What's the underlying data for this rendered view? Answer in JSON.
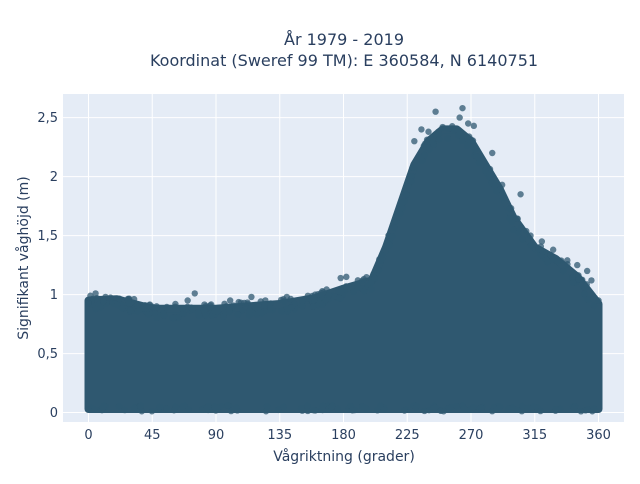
{
  "chart_data": {
    "type": "scatter",
    "title_lines": [
      "År 1979 - 2019",
      "Koordinat (Sweref 99 TM): E 360584, N 6140751"
    ],
    "xlabel": "Vågriktning (grader)",
    "ylabel": "Signifikant våghöjd (m)",
    "xlim": [
      -18,
      378
    ],
    "ylim": [
      -0.08,
      2.7
    ],
    "x_ticks": [
      0,
      45,
      90,
      135,
      180,
      225,
      270,
      315,
      360
    ],
    "x_tick_labels": [
      "0",
      "45",
      "90",
      "135",
      "180",
      "225",
      "270",
      "315",
      "360"
    ],
    "y_ticks": [
      0,
      0.5,
      1,
      1.5,
      2,
      2.5
    ],
    "y_tick_labels": [
      "0",
      "0,5",
      "1",
      "1,5",
      "2",
      "2,5"
    ],
    "grid": true,
    "colors": {
      "marker": "#2f5870",
      "plot_bg": "#e5ecf6",
      "grid": "#ffffff",
      "text": "#2a3f5f"
    },
    "upper_envelope": [
      {
        "x": 0,
        "y": 0.95
      },
      {
        "x": 20,
        "y": 0.96
      },
      {
        "x": 45,
        "y": 0.88
      },
      {
        "x": 90,
        "y": 0.88
      },
      {
        "x": 135,
        "y": 0.92
      },
      {
        "x": 160,
        "y": 0.97
      },
      {
        "x": 180,
        "y": 1.05
      },
      {
        "x": 200,
        "y": 1.12
      },
      {
        "x": 210,
        "y": 1.4
      },
      {
        "x": 220,
        "y": 1.75
      },
      {
        "x": 230,
        "y": 2.1
      },
      {
        "x": 240,
        "y": 2.3
      },
      {
        "x": 250,
        "y": 2.4
      },
      {
        "x": 260,
        "y": 2.4
      },
      {
        "x": 270,
        "y": 2.3
      },
      {
        "x": 280,
        "y": 2.1
      },
      {
        "x": 290,
        "y": 1.9
      },
      {
        "x": 300,
        "y": 1.65
      },
      {
        "x": 315,
        "y": 1.4
      },
      {
        "x": 330,
        "y": 1.3
      },
      {
        "x": 345,
        "y": 1.15
      },
      {
        "x": 360,
        "y": 0.92
      }
    ],
    "outliers": [
      {
        "x": 5,
        "y": 1.01
      },
      {
        "x": 12,
        "y": 0.98
      },
      {
        "x": 28,
        "y": 0.95
      },
      {
        "x": 40,
        "y": 0.91
      },
      {
        "x": 70,
        "y": 0.95
      },
      {
        "x": 75,
        "y": 1.01
      },
      {
        "x": 100,
        "y": 0.95
      },
      {
        "x": 115,
        "y": 0.98
      },
      {
        "x": 140,
        "y": 0.98
      },
      {
        "x": 160,
        "y": 1.0
      },
      {
        "x": 178,
        "y": 1.14
      },
      {
        "x": 182,
        "y": 1.15
      },
      {
        "x": 230,
        "y": 2.3
      },
      {
        "x": 235,
        "y": 2.4
      },
      {
        "x": 240,
        "y": 2.38
      },
      {
        "x": 245,
        "y": 2.55
      },
      {
        "x": 250,
        "y": 2.42
      },
      {
        "x": 262,
        "y": 2.5
      },
      {
        "x": 264,
        "y": 2.58
      },
      {
        "x": 268,
        "y": 2.45
      },
      {
        "x": 272,
        "y": 2.43
      },
      {
        "x": 280,
        "y": 2.05
      },
      {
        "x": 285,
        "y": 2.2
      },
      {
        "x": 292,
        "y": 1.93
      },
      {
        "x": 305,
        "y": 1.85
      },
      {
        "x": 300,
        "y": 1.55
      },
      {
        "x": 312,
        "y": 1.5
      },
      {
        "x": 320,
        "y": 1.45
      },
      {
        "x": 328,
        "y": 1.38
      },
      {
        "x": 338,
        "y": 1.29
      },
      {
        "x": 345,
        "y": 1.25
      },
      {
        "x": 352,
        "y": 1.2
      },
      {
        "x": 355,
        "y": 1.12
      },
      {
        "x": 360,
        "y": 0.95
      }
    ]
  }
}
